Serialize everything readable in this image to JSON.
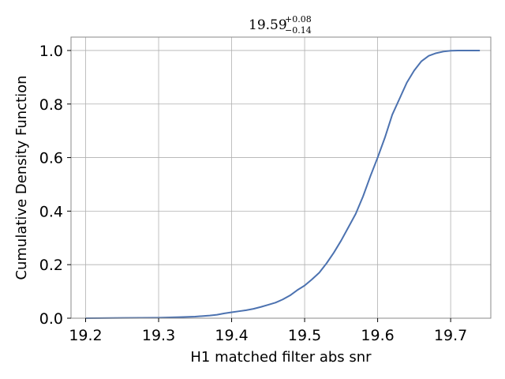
{
  "chart_data": {
    "type": "line",
    "title": {
      "value": "19.59",
      "upper": "+0.08",
      "lower": "−0.14"
    },
    "xlabel": "H1 matched filter abs snr",
    "ylabel": "Cumulative Density Function",
    "xlim": [
      19.18,
      19.755
    ],
    "ylim": [
      0.0,
      1.05
    ],
    "x_ticks": [
      19.2,
      19.3,
      19.4,
      19.5,
      19.6,
      19.7
    ],
    "x_tick_labels": [
      "19.2",
      "19.3",
      "19.4",
      "19.5",
      "19.6",
      "19.7"
    ],
    "y_ticks": [
      0.0,
      0.2,
      0.4,
      0.6,
      0.8,
      1.0
    ],
    "y_tick_labels": [
      "0.0",
      "0.2",
      "0.4",
      "0.6",
      "0.8",
      "1.0"
    ],
    "grid": true,
    "line_color": "#4c72b0",
    "series": [
      {
        "x": [
          19.2,
          19.25,
          19.3,
          19.33,
          19.35,
          19.37,
          19.38,
          19.39,
          19.4,
          19.41,
          19.42,
          19.43,
          19.44,
          19.45,
          19.46,
          19.47,
          19.48,
          19.49,
          19.5,
          19.51,
          19.52,
          19.53,
          19.54,
          19.55,
          19.56,
          19.57,
          19.58,
          19.59,
          19.6,
          19.61,
          19.62,
          19.63,
          19.64,
          19.65,
          19.66,
          19.67,
          19.68,
          19.69,
          19.7,
          19.71,
          19.72,
          19.74
        ],
        "y": [
          0.0,
          0.001,
          0.002,
          0.004,
          0.006,
          0.01,
          0.013,
          0.018,
          0.022,
          0.026,
          0.03,
          0.035,
          0.042,
          0.05,
          0.058,
          0.07,
          0.085,
          0.105,
          0.122,
          0.145,
          0.17,
          0.205,
          0.245,
          0.29,
          0.34,
          0.39,
          0.455,
          0.53,
          0.6,
          0.675,
          0.76,
          0.82,
          0.88,
          0.925,
          0.96,
          0.98,
          0.99,
          0.996,
          0.999,
          1.0,
          1.0,
          1.0
        ]
      }
    ]
  }
}
